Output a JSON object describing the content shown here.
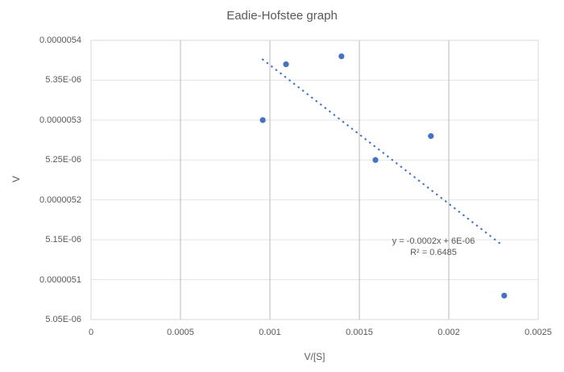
{
  "chart_data": {
    "type": "scatter",
    "title": "Eadie-Hofstee graph",
    "xlabel": "V/[S]",
    "ylabel": "V",
    "xlim": [
      0,
      0.0025
    ],
    "ylim": [
      5.05e-06,
      5.4e-06
    ],
    "grid": true,
    "legend": "none",
    "x_ticks": [
      {
        "value": 0,
        "label": "0"
      },
      {
        "value": 0.0005,
        "label": "0.0005"
      },
      {
        "value": 0.001,
        "label": "0.001"
      },
      {
        "value": 0.0015,
        "label": "0.0015"
      },
      {
        "value": 0.002,
        "label": "0.002"
      },
      {
        "value": 0.0025,
        "label": "0.0025"
      }
    ],
    "y_ticks": [
      {
        "value": 5.05e-06,
        "label": "5.05E-06"
      },
      {
        "value": 5.1e-06,
        "label": "0.0000051"
      },
      {
        "value": 5.15e-06,
        "label": "5.15E-06"
      },
      {
        "value": 5.2e-06,
        "label": "0.0000052"
      },
      {
        "value": 5.25e-06,
        "label": "5.25E-06"
      },
      {
        "value": 5.3e-06,
        "label": "0.0000053"
      },
      {
        "value": 5.35e-06,
        "label": "5.35E-06"
      },
      {
        "value": 5.4e-06,
        "label": "0.0000054"
      }
    ],
    "points": [
      {
        "x": 0.00096,
        "y": 5.3e-06
      },
      {
        "x": 0.00109,
        "y": 5.37e-06
      },
      {
        "x": 0.0014,
        "y": 5.38e-06
      },
      {
        "x": 0.00159,
        "y": 5.25e-06
      },
      {
        "x": 0.0019,
        "y": 5.28e-06
      },
      {
        "x": 0.00231,
        "y": 5.08e-06
      }
    ],
    "trendline": {
      "x1": 0.00096,
      "y1": 5.376e-06,
      "x2": 0.0023,
      "y2": 5.143e-06,
      "equation": "y = -0.0002x + 6E-06",
      "r_squared": "R² = 0.6485"
    },
    "colors": {
      "marker": "#4472C4",
      "trendline": "#4472C4",
      "gridline_h": "#E3E3E3",
      "gridline_v": "#B9B9B9",
      "border": "#D9D9D9",
      "text": "#595959"
    }
  }
}
